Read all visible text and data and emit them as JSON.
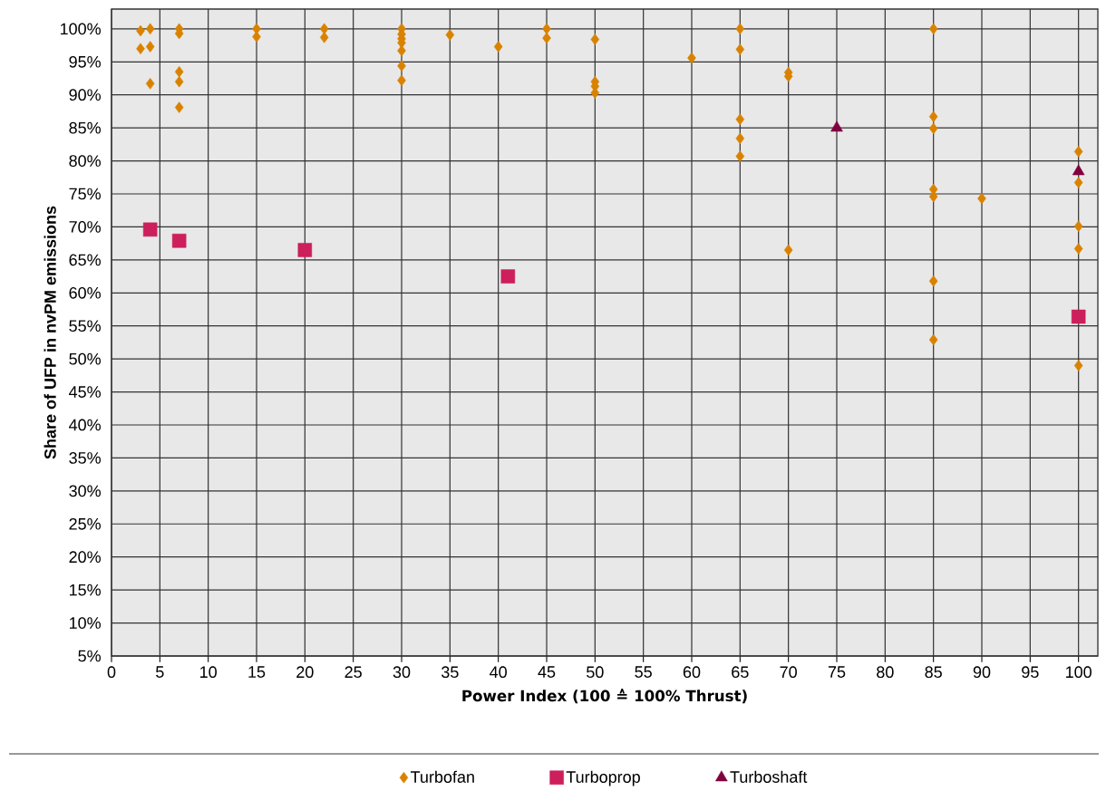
{
  "chart_data": {
    "type": "scatter",
    "xlabel": "Power Index (100 ≙ 100% Thrust)",
    "ylabel": "Share of UFP in nvPM emissions",
    "xlim": [
      0,
      102
    ],
    "ylim": [
      5,
      103
    ],
    "xticks": [
      0,
      5,
      10,
      15,
      20,
      25,
      30,
      35,
      40,
      45,
      50,
      55,
      60,
      65,
      70,
      75,
      80,
      85,
      90,
      95,
      100
    ],
    "yticks": [
      {
        "value": 5,
        "label": "5%"
      },
      {
        "value": 10,
        "label": "10%"
      },
      {
        "value": 15,
        "label": "15%"
      },
      {
        "value": 20,
        "label": "20%"
      },
      {
        "value": 25,
        "label": "25%"
      },
      {
        "value": 30,
        "label": "30%"
      },
      {
        "value": 35,
        "label": "35%"
      },
      {
        "value": 40,
        "label": "40%"
      },
      {
        "value": 45,
        "label": "45%"
      },
      {
        "value": 50,
        "label": "50%"
      },
      {
        "value": 55,
        "label": "55%"
      },
      {
        "value": 60,
        "label": "60%"
      },
      {
        "value": 65,
        "label": "65%"
      },
      {
        "value": 70,
        "label": "70%"
      },
      {
        "value": 75,
        "label": "75%"
      },
      {
        "value": 80,
        "label": "80%"
      },
      {
        "value": 85,
        "label": "85%"
      },
      {
        "value": 90,
        "label": "90%"
      },
      {
        "value": 95,
        "label": "95%"
      },
      {
        "value": 100,
        "label": "100%"
      }
    ],
    "grid": true,
    "legend": "bottom",
    "series": [
      {
        "name": "Turbofan",
        "color": "#d98200",
        "marker": "diamond",
        "x": [
          3,
          3,
          4,
          4,
          4,
          7,
          7,
          7,
          7,
          7,
          15,
          15,
          22,
          22,
          30,
          30,
          30,
          30,
          30,
          30,
          30,
          35,
          40,
          45,
          45,
          50,
          50,
          50,
          50,
          60,
          65,
          65,
          65,
          65,
          65,
          70,
          70,
          70,
          85,
          85,
          85,
          85,
          85,
          85,
          85,
          90,
          100,
          100,
          100,
          100,
          100
        ],
        "values": [
          99.7,
          97,
          100,
          97.3,
          91.7,
          100,
          99.3,
          93.5,
          92,
          88.1,
          100,
          98.8,
          100,
          98.7,
          100,
          99.2,
          98.5,
          97.9,
          96.7,
          94.4,
          92.2,
          99.1,
          97.3,
          100,
          98.6,
          98.4,
          92,
          91.3,
          90.3,
          95.6,
          100,
          96.9,
          86.3,
          83.4,
          80.7,
          93.4,
          92.8,
          66.5,
          100,
          86.7,
          84.9,
          75.7,
          74.6,
          61.8,
          52.9,
          74.3,
          81.4,
          76.7,
          70.1,
          66.7,
          49
        ]
      },
      {
        "name": "Turboprop",
        "color": "#cc1f5b",
        "marker": "square",
        "x": [
          4,
          7,
          20,
          41,
          100
        ],
        "values": [
          69.6,
          67.9,
          66.5,
          62.5,
          56.4
        ]
      },
      {
        "name": "Turboshaft",
        "color": "#800040",
        "marker": "triangle",
        "x": [
          75,
          100
        ],
        "values": [
          85,
          78.4
        ]
      }
    ]
  }
}
